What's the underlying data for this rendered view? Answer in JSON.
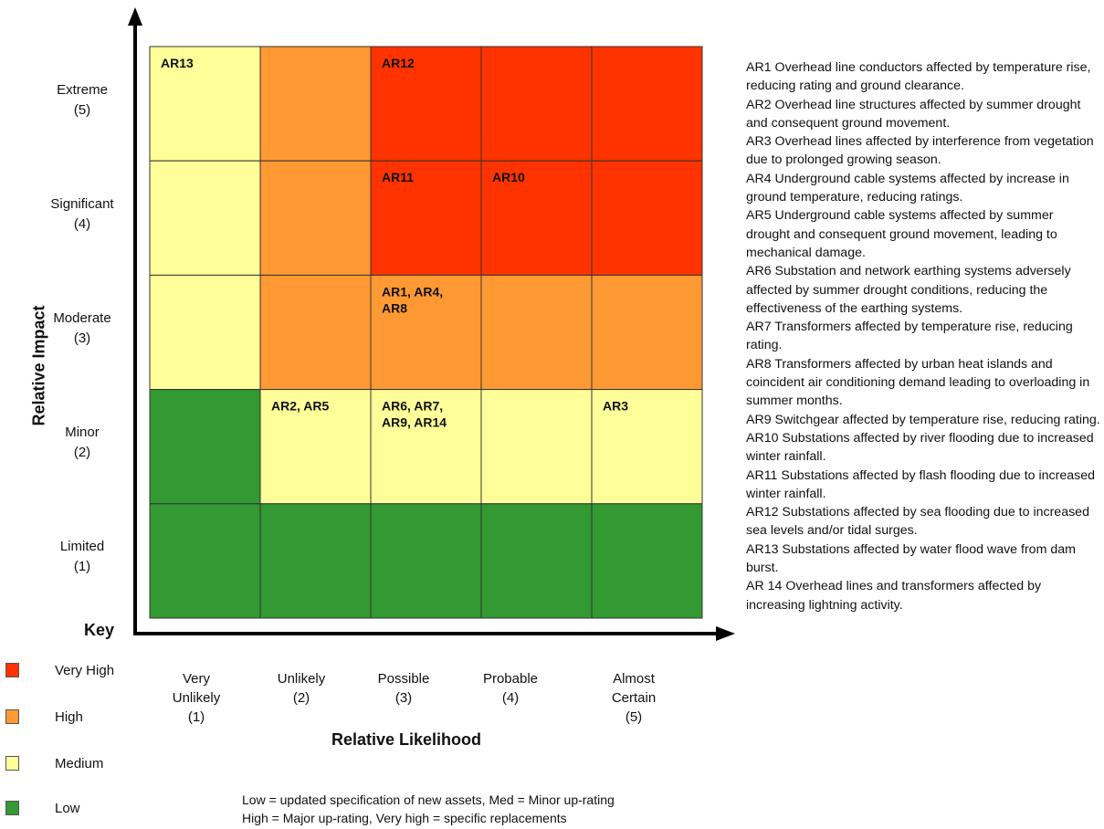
{
  "axes": {
    "y_title": "Relative Impact",
    "x_title": "Relative Likelihood",
    "impact_levels": [
      {
        "name": "Extreme",
        "score": "(5)"
      },
      {
        "name": "Significant",
        "score": "(4)"
      },
      {
        "name": "Moderate",
        "score": "(3)"
      },
      {
        "name": "Minor",
        "score": "(2)"
      },
      {
        "name": "Limited",
        "score": "(1)"
      }
    ],
    "likelihood_levels": [
      {
        "line1": "Very",
        "line2": "Unlikely",
        "line3": "(1)"
      },
      {
        "line1": "Unlikely",
        "line2": "(2)",
        "line3": ""
      },
      {
        "line1": "Possible",
        "line2": "(3)",
        "line3": ""
      },
      {
        "line1": "Probable",
        "line2": "(4)",
        "line3": ""
      },
      {
        "line1": "Almost",
        "line2": "Certain",
        "line3": "(5)"
      }
    ]
  },
  "colors": {
    "very_high": "#ff3300",
    "high": "#ff9933",
    "medium": "#ffff99",
    "low": "#339933"
  },
  "matrix": {
    "rows": [
      {
        "impact": "Extreme",
        "cells": [
          {
            "level": "medium",
            "label": "AR13"
          },
          {
            "level": "high",
            "label": ""
          },
          {
            "level": "very_high",
            "label": "AR12"
          },
          {
            "level": "very_high",
            "label": ""
          },
          {
            "level": "very_high",
            "label": ""
          }
        ]
      },
      {
        "impact": "Significant",
        "cells": [
          {
            "level": "medium",
            "label": ""
          },
          {
            "level": "high",
            "label": ""
          },
          {
            "level": "very_high",
            "label": "AR11"
          },
          {
            "level": "very_high",
            "label": "AR10"
          },
          {
            "level": "very_high",
            "label": ""
          }
        ]
      },
      {
        "impact": "Moderate",
        "cells": [
          {
            "level": "medium",
            "label": ""
          },
          {
            "level": "high",
            "label": ""
          },
          {
            "level": "high",
            "label": "AR1, AR4,\nAR8"
          },
          {
            "level": "high",
            "label": ""
          },
          {
            "level": "high",
            "label": ""
          }
        ]
      },
      {
        "impact": "Minor",
        "cells": [
          {
            "level": "low",
            "label": ""
          },
          {
            "level": "medium",
            "label": "AR2, AR5"
          },
          {
            "level": "medium",
            "label": "AR6, AR7,\nAR9, AR14"
          },
          {
            "level": "medium",
            "label": ""
          },
          {
            "level": "medium",
            "label": "AR3"
          }
        ]
      },
      {
        "impact": "Limited",
        "cells": [
          {
            "level": "low",
            "label": ""
          },
          {
            "level": "low",
            "label": ""
          },
          {
            "level": "low",
            "label": ""
          },
          {
            "level": "low",
            "label": ""
          },
          {
            "level": "low",
            "label": ""
          }
        ]
      }
    ]
  },
  "key": {
    "title": "Key",
    "items": [
      {
        "level": "very_high",
        "label": "Very High"
      },
      {
        "level": "high",
        "label": "High"
      },
      {
        "level": "medium",
        "label": "Medium"
      },
      {
        "level": "low",
        "label": "Low"
      }
    ]
  },
  "footnote": {
    "line1": "Low = updated specification of new assets, Med = Minor up-rating",
    "line2": "High = Major up-rating, Very high = specific replacements"
  },
  "descriptions": [
    "AR1 Overhead line conductors affected by temperature rise, reducing rating and ground clearance.",
    "AR2 Overhead line structures affected by summer drought and consequent ground movement.",
    "AR3 Overhead lines affected by interference from vegetation due to prolonged growing season.",
    "AR4 Underground cable systems affected by increase in ground temperature, reducing ratings.",
    "AR5 Underground cable systems affected by summer drought and consequent ground movement, leading to mechanical damage.",
    "AR6 Substation and network earthing systems adversely affected by summer drought conditions, reducing the effectiveness of the earthing systems.",
    "AR7 Transformers affected by temperature rise, reducing rating.",
    "AR8 Transformers affected by urban heat islands and coincident air conditioning demand leading to overloading in summer months.",
    "AR9 Switchgear affected by temperature rise, reducing rating.",
    "AR10 Substations affected by river flooding due to increased winter rainfall.",
    "AR11 Substations affected by flash flooding due to increased winter rainfall.",
    "AR12 Substations affected by sea flooding due to increased sea levels and/or tidal surges.",
    "AR13 Substations affected by water flood wave from dam burst.",
    "AR 14 Overhead lines and transformers affected by increasing lightning activity."
  ]
}
